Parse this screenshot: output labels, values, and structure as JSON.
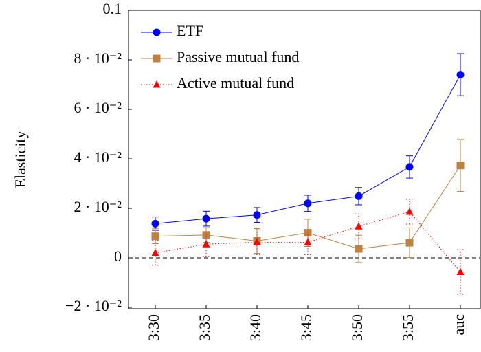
{
  "chart_data": {
    "type": "line",
    "y_label": "Elasticity",
    "categories": [
      "3:30",
      "3:35",
      "3:40",
      "3:45",
      "3:50",
      "3:55",
      "auc"
    ],
    "series": [
      {
        "name": "ETF",
        "color": "#0000ff",
        "marker": "circle",
        "dotted": false,
        "values": [
          0.0138,
          0.0158,
          0.0173,
          0.022,
          0.0249,
          0.0367,
          0.074
        ],
        "errors": [
          0.0027,
          0.003,
          0.003,
          0.0033,
          0.0035,
          0.0045,
          0.0085
        ]
      },
      {
        "name": "Passive mutual fund",
        "color": "#bf8040",
        "marker": "square",
        "dotted": false,
        "values": [
          0.0087,
          0.0092,
          0.0068,
          0.0101,
          0.0036,
          0.0061,
          0.0373
        ],
        "errors": [
          0.003,
          0.003,
          0.005,
          0.0055,
          0.0055,
          0.006,
          0.0105
        ]
      },
      {
        "name": "Active mutual fund",
        "color": "#ff0000",
        "marker": "triangle",
        "dotted": true,
        "values": [
          0.002,
          0.0055,
          0.0063,
          0.0063,
          0.0127,
          0.0186,
          -0.0057
        ],
        "errors": [
          0.005,
          0.005,
          0.005,
          0.005,
          0.005,
          0.005,
          0.009
        ]
      }
    ],
    "ylim": [
      -0.02,
      0.1
    ],
    "yticks": [
      {
        "value": -0.02,
        "label": "−2 · 10⁻²"
      },
      0,
      {
        "value": 0.02,
        "label": "2 · 10⁻²"
      },
      {
        "value": 0.04,
        "label": "4 · 10⁻²"
      },
      {
        "value": 0.06,
        "label": "6 · 10⁻²"
      },
      {
        "value": 0.08,
        "label": "8 · 10⁻²"
      },
      0.1
    ],
    "hline": 0,
    "legend": "top-left"
  }
}
